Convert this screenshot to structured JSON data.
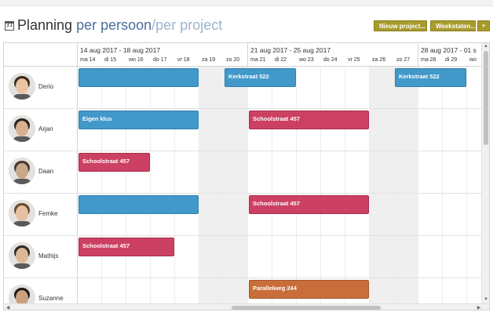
{
  "header": {
    "title_main": "Planning",
    "view_active": "per persoon",
    "view_separator": "/",
    "view_inactive": "per project",
    "new_project_label": "Nieuw project...",
    "weekstaten_label": "Weekstaten...",
    "dropdown_label": "▾",
    "calendar_icon_text": "31"
  },
  "weeks": [
    {
      "label": "14 aug 2017 - 18 aug 2017"
    },
    {
      "label": "21 aug 2017 - 25 aug 2017"
    },
    {
      "label": "28 aug 2017 - 01 s"
    }
  ],
  "days": [
    "ma 14",
    "di 15",
    "wo 16",
    "do 17",
    "vr 18",
    "za 19",
    "zo 20",
    "ma 21",
    "di 22",
    "wo 23",
    "do 24",
    "vr 25",
    "za 26",
    "zo 27",
    "ma 28",
    "di 29",
    "wo"
  ],
  "weekend_days": [
    5,
    6,
    12,
    13
  ],
  "people": [
    {
      "name": "Derio"
    },
    {
      "name": "Arjan"
    },
    {
      "name": "Daan"
    },
    {
      "name": "Femke"
    },
    {
      "name": "Mathijs"
    },
    {
      "name": "Suzanne"
    }
  ],
  "assignments": [
    {
      "person": 0,
      "start": 0,
      "span": 5,
      "label": "",
      "color": "blue"
    },
    {
      "person": 0,
      "start": 6,
      "span": 3,
      "label": "Kerkstraat 522",
      "color": "blue"
    },
    {
      "person": 0,
      "start": 13,
      "span": 3,
      "label": "Kerkstraat 522",
      "color": "blue"
    },
    {
      "person": 1,
      "start": 0,
      "span": 5,
      "label": "Eigen klus",
      "color": "blue"
    },
    {
      "person": 1,
      "start": 7,
      "span": 5,
      "label": "Schoolstraat 457",
      "color": "red"
    },
    {
      "person": 2,
      "start": 0,
      "span": 3,
      "label": "Schoolstraat 457",
      "color": "red"
    },
    {
      "person": 3,
      "start": 0,
      "span": 5,
      "label": "",
      "color": "blue"
    },
    {
      "person": 3,
      "start": 7,
      "span": 5,
      "label": "Schoolstraat 457",
      "color": "red"
    },
    {
      "person": 4,
      "start": 0,
      "span": 4,
      "label": "Schoolstraat 457",
      "color": "red"
    },
    {
      "person": 5,
      "start": 7,
      "span": 5,
      "label": "Parallelweg 244",
      "color": "orange"
    }
  ]
}
